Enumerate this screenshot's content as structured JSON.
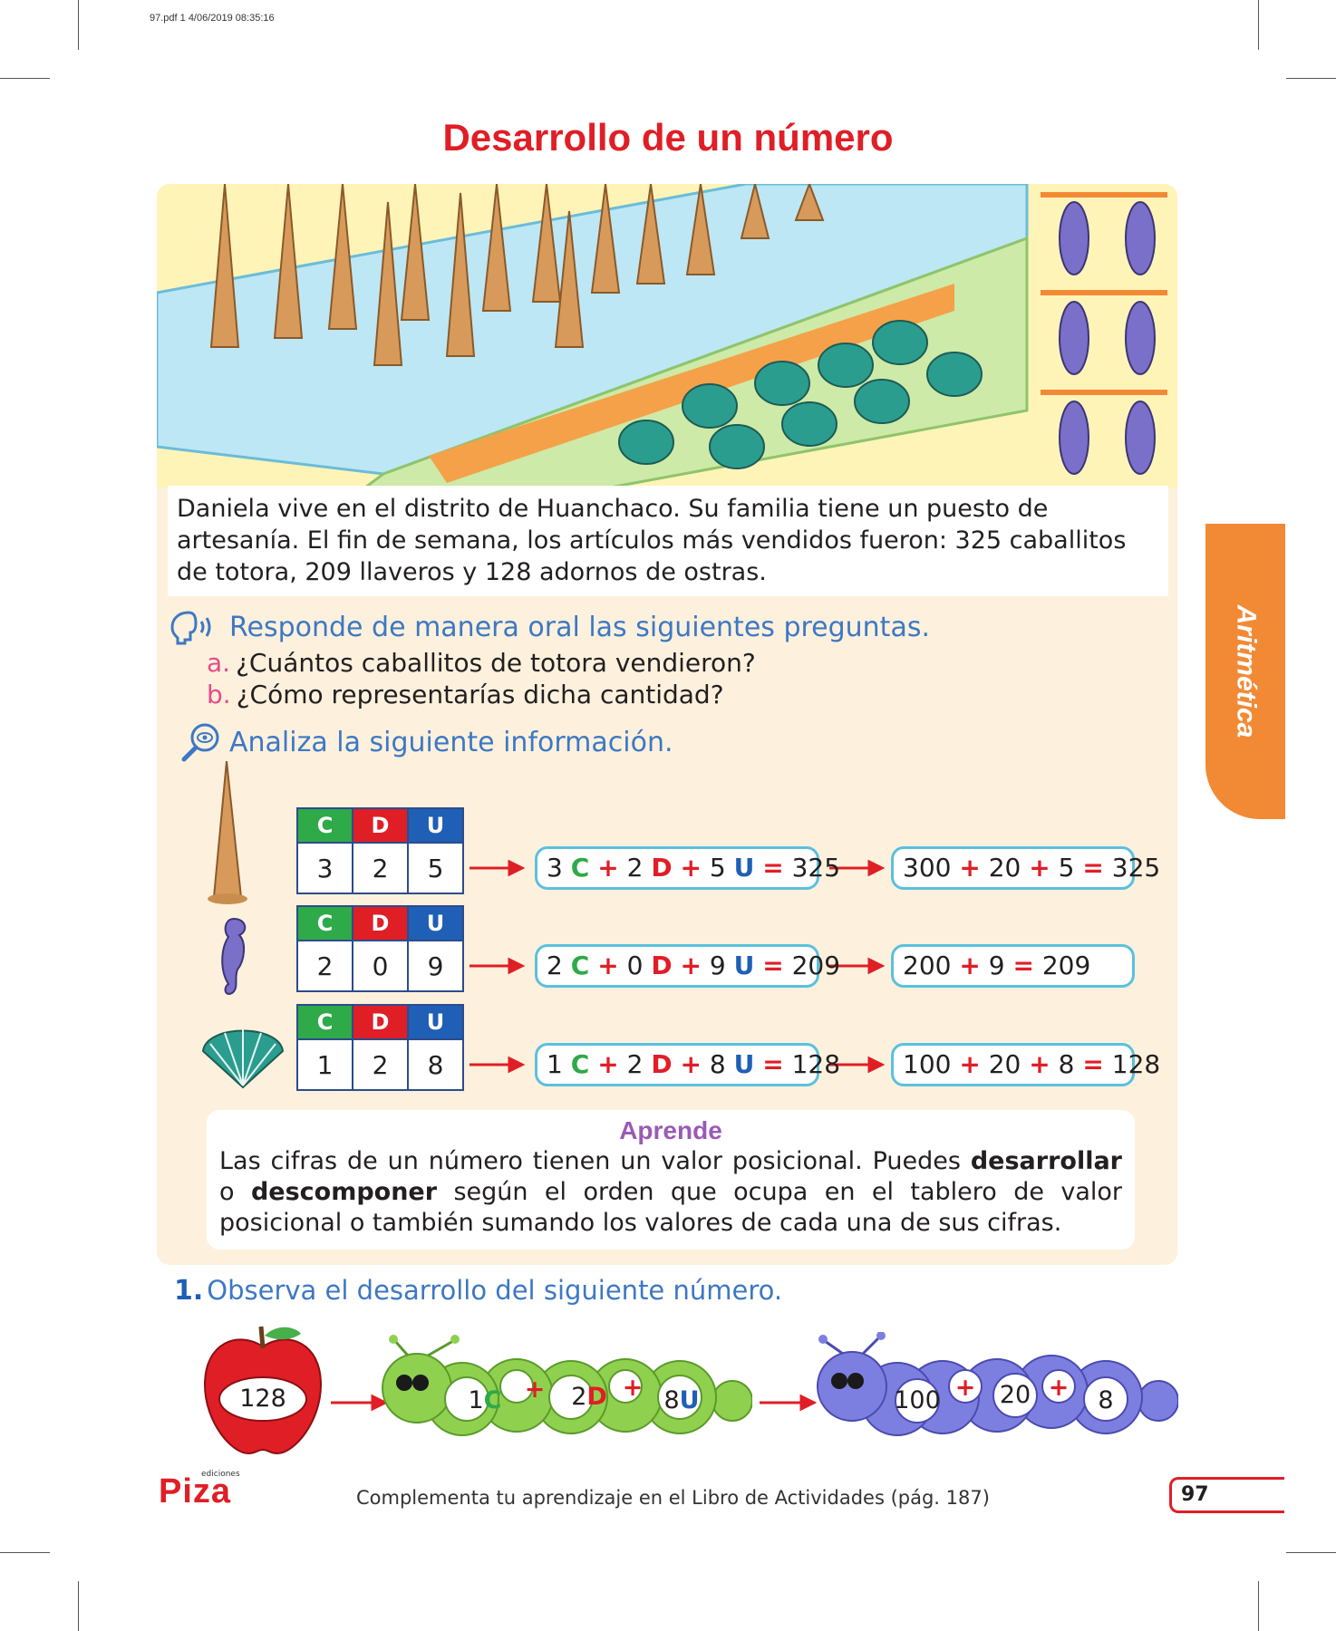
{
  "meta": {
    "file_stamp": "97.pdf  1  4/06/2019  08:35:16"
  },
  "title": "Desarrollo de un número",
  "story": {
    "line1": "Daniela vive en el distrito de Huanchaco. Su familia tiene un puesto de",
    "line2": "artesanía. El fin de semana, los artículos más vendidos fueron: 325 caballitos",
    "line3": "de totora, 209 llaveros y 128 adornos de ostras."
  },
  "oral": {
    "heading": "Responde de manera oral las siguientes preguntas.",
    "items": [
      {
        "letter": "a.",
        "text": "¿Cuántos caballitos de totora vendieron?"
      },
      {
        "letter": "b.",
        "text": "¿Cómo representarías dicha cantidad?"
      }
    ]
  },
  "analyze": {
    "heading": "Analiza la siguiente información."
  },
  "side_tab": "Aritmética",
  "colors": {
    "title_red": "#e01e26",
    "c_green": "#2eaa48",
    "d_red": "#e01e26",
    "u_blue": "#1f5fb5",
    "tab_orange": "#f28a35",
    "box_border": "#5bc0de"
  },
  "place_value": {
    "headers": [
      "C",
      "D",
      "U"
    ],
    "rows": [
      {
        "digits": [
          "3",
          "2",
          "5"
        ],
        "exp1": {
          "c": "3",
          "d": "2",
          "u": "5",
          "total": "325"
        },
        "exp2": [
          "300",
          "20",
          "5"
        ],
        "exp2_total": "325"
      },
      {
        "digits": [
          "2",
          "0",
          "9"
        ],
        "exp1": {
          "c": "2",
          "d": "0",
          "u": "9",
          "total": "209"
        },
        "exp2": [
          "200",
          "9"
        ],
        "exp2_total": "209"
      },
      {
        "digits": [
          "1",
          "2",
          "8"
        ],
        "exp1": {
          "c": "1",
          "d": "2",
          "u": "8",
          "total": "128"
        },
        "exp2": [
          "100",
          "20",
          "8"
        ],
        "exp2_total": "128"
      }
    ],
    "symbols": {
      "plus": "+",
      "equals": "="
    }
  },
  "learn": {
    "title": "Aprende",
    "part1": "Las cifras de un número tienen un valor posicional. Puedes ",
    "bold1": "desarrollar",
    "part2": "o ",
    "bold2": "descomponer",
    "part3": " según el orden que ocupa en el tablero de valor posicional o también sumando los valores de cada una de sus cifras."
  },
  "exercise": {
    "number": "1.",
    "text": "Observa el desarrollo del siguiente número.",
    "apple_value": "128",
    "green_caterpillar": [
      "1",
      "C",
      "+",
      "2",
      "D",
      "+",
      "8",
      "U"
    ],
    "blue_caterpillar": [
      "100",
      "+",
      "20",
      "+",
      "8"
    ]
  },
  "footer": {
    "text": "Complementa tu aprendizaje en el Libro de Actividades (pág. 187)",
    "page": "97",
    "logo": "Piza",
    "logo_small": "ediciones"
  }
}
